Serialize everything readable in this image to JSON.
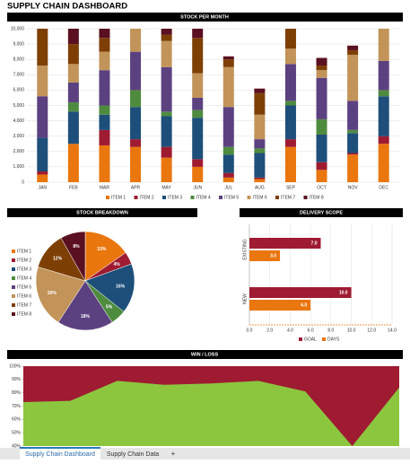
{
  "title": "SUPPLY CHAIN DASHBOARD",
  "chart_data": [
    {
      "type": "stacked_bar",
      "title": "STOCK PER MONTH",
      "categories": [
        "JAN",
        "FEB",
        "MAR",
        "APR",
        "MAY",
        "JUN",
        "JUL",
        "AUG",
        "SEP",
        "OCT",
        "NOV",
        "DEC"
      ],
      "ylim": [
        0,
        10000
      ],
      "yticks": [
        0,
        {
          "value": 1000,
          "label": "1,000"
        },
        {
          "value": 2000,
          "label": "2,000"
        },
        {
          "value": 3000,
          "label": "3,000"
        },
        {
          "value": 4000,
          "label": "4,000"
        },
        {
          "value": 5000,
          "label": "5,000"
        },
        {
          "value": 6000,
          "label": "6,000"
        },
        {
          "value": 7000,
          "label": "7,000"
        },
        {
          "value": 8000,
          "label": "8,000"
        },
        {
          "value": 9000,
          "label": "9,000"
        },
        {
          "value": 10000,
          "label": "10,000"
        }
      ],
      "grid": true,
      "series": [
        {
          "name": "ITEM 1",
          "color": "#ea760e",
          "values": [
            500,
            2500,
            2400,
            2300,
            1600,
            1000,
            300,
            200,
            2300,
            800,
            1800,
            2500
          ]
        },
        {
          "name": "ITEM 2",
          "color": "#9e1b32",
          "values": [
            200,
            0,
            1000,
            500,
            700,
            500,
            300,
            100,
            500,
            500,
            100,
            500
          ]
        },
        {
          "name": "ITEM 3",
          "color": "#1d4f7a",
          "values": [
            2200,
            2100,
            1000,
            2100,
            2000,
            2700,
            1200,
            1600,
            2200,
            1800,
            1300,
            2600
          ]
        },
        {
          "name": "ITEM 4",
          "color": "#4f8b3f",
          "values": [
            0,
            600,
            600,
            1100,
            300,
            500,
            500,
            300,
            300,
            1000,
            200,
            400
          ]
        },
        {
          "name": "ITEM 5",
          "color": "#5c4180",
          "values": [
            2700,
            1300,
            2300,
            2500,
            2900,
            800,
            2600,
            600,
            2400,
            2700,
            1900,
            1900
          ]
        },
        {
          "name": "ITEM 6",
          "color": "#c29459",
          "values": [
            2000,
            1200,
            1200,
            1500,
            1700,
            1600,
            2600,
            1600,
            1000,
            500,
            3000,
            2100
          ]
        },
        {
          "name": "ITEM 7",
          "color": "#7e3f05",
          "values": [
            2400,
            1300,
            900,
            0,
            400,
            2300,
            500,
            1400,
            1300,
            300,
            300,
            0
          ]
        },
        {
          "name": "ITEM 8",
          "color": "#5a1020",
          "values": [
            0,
            1000,
            600,
            0,
            400,
            600,
            200,
            300,
            0,
            500,
            300,
            0
          ]
        }
      ]
    },
    {
      "type": "pie",
      "title": "STOCK BREAKDOWN",
      "categories": [
        "ITEM 1",
        "ITEM 2",
        "ITEM 3",
        "ITEM 4",
        "ITEM 5",
        "ITEM 6",
        "ITEM 7",
        "ITEM 8"
      ],
      "values": [
        15,
        4,
        16,
        5,
        18,
        20,
        12,
        8
      ],
      "value_labels": [
        "15%",
        "4%",
        "16%",
        "5%",
        "18%",
        "20%",
        "12%",
        "8%"
      ],
      "colors": [
        "#ea760e",
        "#9e1b32",
        "#1d4f7a",
        "#4f8b3f",
        "#5c4180",
        "#c29459",
        "#7e3f05",
        "#5a1020"
      ]
    },
    {
      "type": "hbar",
      "title": "DELIVERY SCOPE",
      "categories": [
        "EXISTING",
        "NEW"
      ],
      "xlim": [
        0,
        14
      ],
      "xticks": [
        {
          "value": 0,
          "label": "0.0"
        },
        {
          "value": 2,
          "label": "2.0"
        },
        {
          "value": 4,
          "label": "4.0"
        },
        {
          "value": 6,
          "label": "6.0"
        },
        {
          "value": 8,
          "label": "8.0"
        },
        {
          "value": 10,
          "label": "10.0"
        },
        {
          "value": 12,
          "label": "12.0"
        },
        {
          "value": 14,
          "label": "14.0"
        }
      ],
      "grid": true,
      "series": [
        {
          "name": "GOAL",
          "color": "#9e1b32",
          "values": [
            7,
            10
          ],
          "value_labels": [
            "7.0",
            "10.0"
          ]
        },
        {
          "name": "DAYS",
          "color": "#ea760e",
          "values": [
            3,
            6
          ],
          "value_labels": [
            "3.0",
            "6.0"
          ]
        }
      ]
    },
    {
      "type": "area",
      "title": "WIN / LOSS",
      "ylim": [
        40,
        100
      ],
      "yticks": [
        {
          "value": 40,
          "label": "40%"
        },
        {
          "value": 50,
          "label": "50%"
        },
        {
          "value": 60,
          "label": "60%"
        },
        {
          "value": 70,
          "label": "70%"
        },
        {
          "value": 80,
          "label": "80%"
        },
        {
          "value": 90,
          "label": "90%"
        },
        {
          "value": 100,
          "label": "100%"
        }
      ],
      "values": [
        73,
        74,
        89,
        86,
        87,
        89,
        81,
        40,
        84
      ],
      "color": "#8cc63f",
      "background": "#9e1b32"
    }
  ],
  "tabs": [
    "Supply Chain Dashboard",
    "Supply Chain Data",
    "+"
  ]
}
